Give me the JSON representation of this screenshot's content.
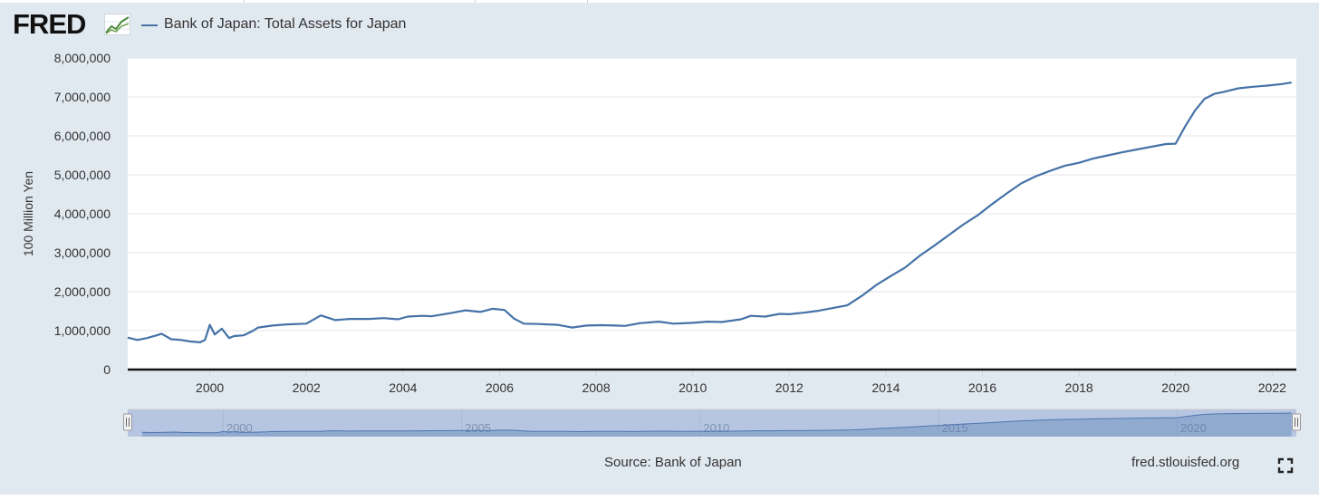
{
  "brand": {
    "logo_text": "FRED",
    "logo_icon": "line-chart-logo-icon"
  },
  "legend": {
    "series_name": "Bank of Japan: Total Assets for Japan",
    "color": "#4572a7"
  },
  "footer": {
    "source": "Source: Bank of Japan",
    "site": "fred.stlouisfed.org",
    "fullscreen_icon": "fullscreen-icon"
  },
  "colors": {
    "background": "#e1e9f0",
    "plot_background": "#ffffff",
    "line": "#4572a7",
    "navigator_mask": "#b3c3dd",
    "navigator_line": "#4572a7"
  },
  "chart_data": {
    "type": "line",
    "title": "",
    "xlabel": "",
    "ylabel": "100 Million Yen",
    "xlim": [
      1998.3,
      2022.5
    ],
    "ylim": [
      0,
      8000000
    ],
    "grid": true,
    "legend_position": "top-left",
    "x_tick_labels": [
      "2000",
      "2002",
      "2004",
      "2006",
      "2008",
      "2010",
      "2012",
      "2014",
      "2016",
      "2018",
      "2020",
      "2022"
    ],
    "y_tick_labels": [
      "0",
      "1,000,000",
      "2,000,000",
      "3,000,000",
      "4,000,000",
      "5,000,000",
      "6,000,000",
      "7,000,000",
      "8,000,000"
    ],
    "navigator_tick_labels": [
      "2000",
      "2005",
      "2010",
      "2015",
      "2020"
    ],
    "series": [
      {
        "name": "Bank of Japan: Total Assets for Japan",
        "x": [
          1998.3,
          1998.5,
          1998.7,
          1998.9,
          1999.0,
          1999.2,
          1999.4,
          1999.6,
          1999.8,
          1999.9,
          2000.0,
          2000.1,
          2000.25,
          2000.4,
          2000.5,
          2000.7,
          2000.9,
          2001.0,
          2001.3,
          2001.6,
          2002.0,
          2002.3,
          2002.6,
          2002.9,
          2003.3,
          2003.6,
          2003.9,
          2004.1,
          2004.4,
          2004.6,
          2005.0,
          2005.3,
          2005.6,
          2005.85,
          2006.1,
          2006.3,
          2006.5,
          2006.8,
          2007.2,
          2007.5,
          2007.8,
          2008.1,
          2008.4,
          2008.6,
          2008.9,
          2009.3,
          2009.6,
          2010.0,
          2010.3,
          2010.6,
          2011.0,
          2011.2,
          2011.5,
          2011.8,
          2012.0,
          2012.3,
          2012.6,
          2012.9,
          2013.2,
          2013.5,
          2013.8,
          2014.1,
          2014.4,
          2014.7,
          2015.0,
          2015.3,
          2015.6,
          2015.9,
          2016.2,
          2016.5,
          2016.8,
          2017.1,
          2017.4,
          2017.7,
          2018.0,
          2018.3,
          2018.6,
          2018.9,
          2019.2,
          2019.5,
          2019.8,
          2020.0,
          2020.2,
          2020.4,
          2020.6,
          2020.8,
          2021.0,
          2021.3,
          2021.6,
          2021.9,
          2022.2,
          2022.4
        ],
        "y": [
          820000,
          760000,
          810000,
          880000,
          920000,
          780000,
          760000,
          720000,
          700000,
          760000,
          1150000,
          900000,
          1050000,
          810000,
          860000,
          880000,
          1000000,
          1080000,
          1130000,
          1160000,
          1180000,
          1390000,
          1270000,
          1300000,
          1300000,
          1320000,
          1290000,
          1360000,
          1380000,
          1370000,
          1450000,
          1520000,
          1480000,
          1560000,
          1530000,
          1310000,
          1180000,
          1170000,
          1150000,
          1080000,
          1130000,
          1140000,
          1130000,
          1120000,
          1190000,
          1230000,
          1180000,
          1200000,
          1230000,
          1220000,
          1290000,
          1380000,
          1360000,
          1430000,
          1420000,
          1460000,
          1510000,
          1580000,
          1650000,
          1890000,
          2170000,
          2400000,
          2620000,
          2920000,
          3180000,
          3450000,
          3720000,
          3960000,
          4250000,
          4520000,
          4780000,
          4960000,
          5100000,
          5230000,
          5310000,
          5420000,
          5500000,
          5580000,
          5650000,
          5720000,
          5790000,
          5800000,
          6250000,
          6650000,
          6950000,
          7080000,
          7130000,
          7220000,
          7260000,
          7290000,
          7330000,
          7370000
        ]
      }
    ]
  }
}
